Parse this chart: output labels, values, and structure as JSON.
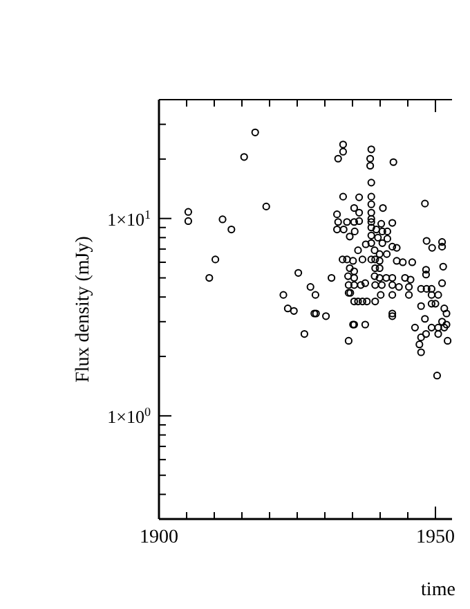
{
  "chart_data": {
    "type": "scatter",
    "xlabel": "time",
    "ylabel": "Flux density (mJy)",
    "log": "y",
    "marker": "circle",
    "grid": false,
    "xlim": [
      1900,
      1953
    ],
    "ylim": [
      0.3,
      40
    ],
    "xticks": [
      1900,
      {
        "value": 1905,
        "label": null
      },
      {
        "value": 1910,
        "label": null
      },
      {
        "value": 1915,
        "label": null
      },
      {
        "value": 1920,
        "label": null
      },
      {
        "value": 1925,
        "label": null
      },
      {
        "value": 1930,
        "label": null
      },
      {
        "value": 1935,
        "label": null
      },
      {
        "value": 1940,
        "label": null
      },
      {
        "value": 1945,
        "label": null
      },
      1950
    ],
    "yticks": [
      {
        "value": 0.4,
        "label": null
      },
      {
        "value": 0.5,
        "label": null
      },
      {
        "value": 0.6,
        "label": null
      },
      {
        "value": 0.7,
        "label": null
      },
      {
        "value": 0.8,
        "label": null
      },
      {
        "value": 0.9,
        "label": null
      },
      {
        "value": 1,
        "label": "1×10$^{0}$"
      },
      {
        "value": 2,
        "label": null
      },
      {
        "value": 3,
        "label": null
      },
      {
        "value": 4,
        "label": null
      },
      {
        "value": 5,
        "label": null
      },
      {
        "value": 6,
        "label": null
      },
      {
        "value": 7,
        "label": null
      },
      {
        "value": 8,
        "label": null
      },
      {
        "value": 9,
        "label": null
      },
      {
        "value": 10,
        "label": "1×10$^{1}$"
      },
      {
        "value": 20,
        "label": null
      },
      {
        "value": 30,
        "label": null
      }
    ],
    "series": [
      {
        "color": "#000000",
        "x": [
          1905.3,
          1905.3,
          1910.2,
          1911.5,
          1913.1,
          1915.4,
          1917.4,
          1919.4,
          1932.4,
          1933.3,
          1933.3,
          1938.4,
          1938.2,
          1938.2,
          1942.4,
          1938.4,
          1933.3,
          1936.2,
          1938.4,
          1938.4,
          1935.3,
          1936.2,
          1938.4,
          1940.5,
          1932.2,
          1938.4,
          1932.4,
          1934.0,
          1935.3,
          1936.2,
          1938.4,
          1940.2,
          1942.2,
          1932.2,
          1933.4,
          1935.4,
          1938.4,
          1939.3,
          1940.4,
          1941.3,
          1938.4,
          1934.5,
          1939.6,
          1941.3,
          1938.4,
          1937.4,
          1940.4,
          1942.2,
          1943.0,
          1936.0,
          1939.0,
          1939.9,
          1941.2,
          1933.2,
          1934.0,
          1935.1,
          1936.8,
          1938.4,
          1939.1,
          1939.9,
          1943.0,
          1944.1,
          1945.8,
          1948.1,
          1948.4,
          1949.4,
          1951.2,
          1951.2,
          1909.1,
          1922.5,
          1923.3,
          1924.4,
          1926.3,
          1925.2,
          1927.4,
          1928.3,
          1931.2,
          1928.1,
          1928.4,
          1930.2,
          1934.5,
          1935.3,
          1934.2,
          1935.3,
          1934.3,
          1935.3,
          1936.5,
          1937.3,
          1934.3,
          1934.6,
          1935.3,
          1936.0,
          1936.8,
          1937.6,
          1939.1,
          1935.3,
          1935.1,
          1937.3,
          1934.3,
          1939.1,
          1939.9,
          1939.0,
          1939.9,
          1941.1,
          1942.2,
          1944.5,
          1945.5,
          1939.1,
          1940.3,
          1942.2,
          1943.4,
          1945.2,
          1942.2,
          1945.2,
          1940.1,
          1942.2,
          1942.2,
          1948.3,
          1948.3,
          1951.4,
          1951.2,
          1947.4,
          1948.4,
          1949.3,
          1950.5,
          1949.3,
          1947.4,
          1949.3,
          1950.0,
          1951.6,
          1951.2,
          1952.0,
          1948.1,
          1946.3,
          1949.3,
          1950.5,
          1951.6,
          1947.4,
          1948.3,
          1947.1,
          1947.4,
          1950.5,
          1952.2,
          1950.3,
          1952.0
        ],
        "values": [
          10.8,
          9.7,
          6.2,
          9.9,
          8.8,
          20.5,
          27.3,
          11.5,
          20.1,
          23.7,
          21.8,
          22.4,
          20.1,
          18.5,
          19.3,
          15.2,
          12.9,
          12.8,
          12.9,
          11.8,
          11.3,
          10.7,
          10.7,
          11.3,
          10.5,
          9.95,
          9.6,
          9.6,
          9.6,
          9.7,
          9.6,
          9.4,
          9.5,
          8.8,
          8.8,
          8.6,
          9.0,
          8.8,
          8.6,
          8.6,
          8.2,
          8.1,
          8.0,
          7.9,
          7.5,
          7.4,
          7.5,
          7.2,
          7.1,
          6.9,
          6.9,
          6.6,
          6.6,
          6.2,
          6.2,
          6.1,
          6.2,
          6.2,
          6.2,
          6.1,
          6.1,
          6.0,
          6.0,
          11.9,
          7.7,
          7.1,
          7.6,
          7.2,
          5.0,
          4.1,
          3.5,
          3.4,
          2.6,
          5.3,
          4.5,
          4.1,
          5.0,
          3.3,
          3.3,
          3.2,
          5.6,
          5.4,
          5.1,
          5.0,
          4.6,
          4.6,
          4.6,
          4.7,
          4.2,
          4.2,
          3.8,
          3.8,
          3.8,
          3.8,
          3.8,
          2.9,
          2.9,
          2.9,
          2.4,
          5.6,
          5.6,
          5.1,
          5.0,
          5.0,
          5.0,
          5.0,
          4.9,
          4.6,
          4.6,
          4.6,
          4.5,
          4.5,
          4.1,
          4.1,
          4.1,
          3.3,
          3.2,
          5.5,
          5.2,
          5.7,
          4.7,
          4.4,
          4.4,
          4.4,
          4.1,
          4.1,
          3.6,
          3.7,
          3.7,
          3.5,
          3.0,
          2.9,
          3.1,
          2.8,
          2.8,
          2.8,
          2.8,
          2.5,
          2.6,
          2.3,
          2.1,
          2.6,
          2.4,
          1.6,
          3.3
        ]
      }
    ]
  }
}
